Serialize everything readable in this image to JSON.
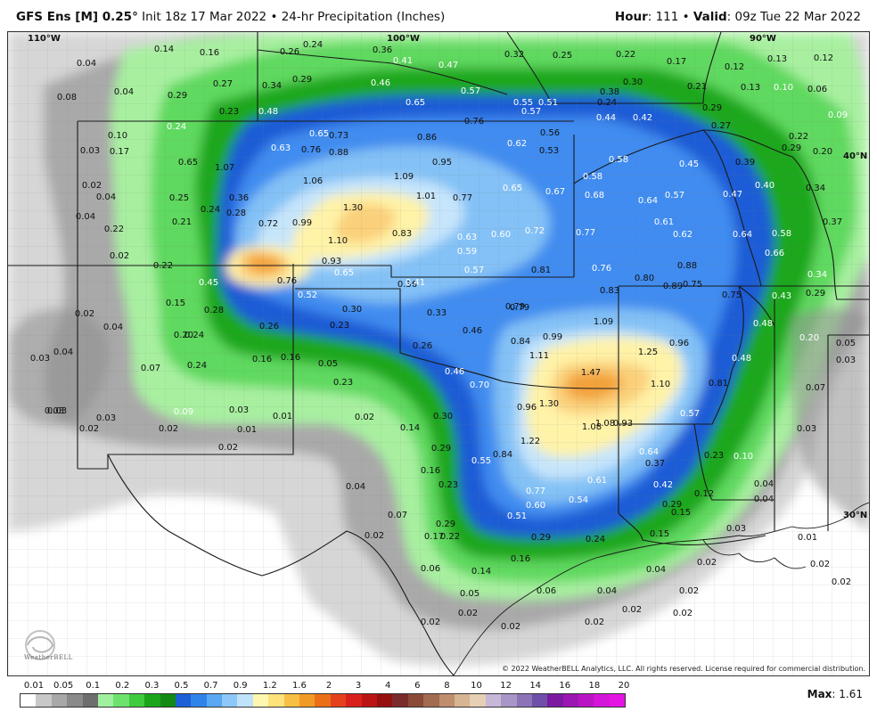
{
  "header": {
    "model": "GFS Ens [M] 0.25",
    "degree": "°",
    "init": "Init 18z 17 Mar 2022",
    "bullet": "•",
    "product": "24-hr Precipitation (Inches)",
    "hour_label": "Hour",
    "hour_value": ": 111",
    "valid_label": "Valid",
    "valid_value": ": 09z Tue 22 Mar 2022"
  },
  "map": {
    "graticule": {
      "lon110": "110°W",
      "lon100": "100°W",
      "lon90": "90°W",
      "lat40": "40°N",
      "lat30": "30°N"
    },
    "copyright": "© 2022 WeatherBELL Analytics, LLC. All rights reserved. License required for commercial distribution.",
    "logo_text": "WeatherBELL",
    "labels": [
      {
        "t": "0.14",
        "c": "d"
      },
      {
        "t": "0.16",
        "c": "d"
      },
      {
        "t": "0.24",
        "c": "d"
      },
      {
        "t": "0.26",
        "c": "d"
      },
      {
        "t": "0.36",
        "c": "d"
      },
      {
        "t": "0.41",
        "c": "w"
      },
      {
        "t": "0.47",
        "c": "w"
      },
      {
        "t": "0.32",
        "c": "d"
      },
      {
        "t": "0.25",
        "c": "d"
      },
      {
        "t": "0.22",
        "c": "d"
      },
      {
        "t": "0.17",
        "c": "d"
      },
      {
        "t": "0.13",
        "c": "d"
      },
      {
        "t": "0.12",
        "c": "d"
      },
      {
        "t": "0.04",
        "c": "d"
      },
      {
        "t": "0.27",
        "c": "d"
      },
      {
        "t": "0.29",
        "c": "d"
      },
      {
        "t": "0.34",
        "c": "d"
      },
      {
        "t": "0.46",
        "c": "w"
      },
      {
        "t": "0.57",
        "c": "w"
      },
      {
        "t": "0.38",
        "c": "d"
      },
      {
        "t": "0.30",
        "c": "d"
      },
      {
        "t": "0.24",
        "c": "d"
      },
      {
        "t": "0.21",
        "c": "d"
      },
      {
        "t": "0.12",
        "c": "d"
      },
      {
        "t": "0.13",
        "c": "d"
      },
      {
        "t": "0.10",
        "c": "w"
      },
      {
        "t": "0.06",
        "c": "d"
      },
      {
        "t": "0.08",
        "c": "d"
      },
      {
        "t": "0.04",
        "c": "d"
      },
      {
        "t": "0.29",
        "c": "d"
      },
      {
        "t": "0.23",
        "c": "d"
      },
      {
        "t": "0.48",
        "c": "w"
      },
      {
        "t": "0.65",
        "c": "w"
      },
      {
        "t": "0.55",
        "c": "w"
      },
      {
        "t": "0.57",
        "c": "w"
      },
      {
        "t": "0.51",
        "c": "w"
      },
      {
        "t": "0.44",
        "c": "w"
      },
      {
        "t": "0.42",
        "c": "w"
      },
      {
        "t": "0.29",
        "c": "d"
      },
      {
        "t": "0.09",
        "c": "w"
      },
      {
        "t": "0.24",
        "c": "w"
      },
      {
        "t": "0.65",
        "c": "w"
      },
      {
        "t": "0.73",
        "c": "d"
      },
      {
        "t": "0.86",
        "c": "d"
      },
      {
        "t": "0.76",
        "c": "d"
      },
      {
        "t": "0.62",
        "c": "w"
      },
      {
        "t": "0.56",
        "c": "d"
      },
      {
        "t": "0.27",
        "c": "d"
      },
      {
        "t": "0.22",
        "c": "d"
      },
      {
        "t": "0.10",
        "c": "d"
      },
      {
        "t": "0.03",
        "c": "d"
      },
      {
        "t": "0.17",
        "c": "d"
      },
      {
        "t": "0.63",
        "c": "w"
      },
      {
        "t": "0.76",
        "c": "d"
      },
      {
        "t": "0.88",
        "c": "d"
      },
      {
        "t": "0.53",
        "c": "d"
      },
      {
        "t": "0.29",
        "c": "d"
      },
      {
        "t": "0.20",
        "c": "d"
      },
      {
        "t": "0.65",
        "c": "d"
      },
      {
        "t": "1.07",
        "c": "d"
      },
      {
        "t": "0.95",
        "c": "d"
      },
      {
        "t": "0.58",
        "c": "w"
      },
      {
        "t": "0.45",
        "c": "w"
      },
      {
        "t": "0.39",
        "c": "d"
      },
      {
        "t": "0.02",
        "c": "d"
      },
      {
        "t": "1.06",
        "c": "d"
      },
      {
        "t": "1.09",
        "c": "d"
      },
      {
        "t": "0.58",
        "c": "w"
      },
      {
        "t": "0.40",
        "c": "w"
      },
      {
        "t": "0.34",
        "c": "d"
      },
      {
        "t": "0.04",
        "c": "d"
      },
      {
        "t": "0.25",
        "c": "d"
      },
      {
        "t": "0.36",
        "c": "d"
      },
      {
        "t": "1.01",
        "c": "d"
      },
      {
        "t": "0.77",
        "c": "d"
      },
      {
        "t": "0.65",
        "c": "w"
      },
      {
        "t": "0.67",
        "c": "w"
      },
      {
        "t": "0.68",
        "c": "w"
      },
      {
        "t": "0.64",
        "c": "w"
      },
      {
        "t": "0.57",
        "c": "w"
      },
      {
        "t": "0.47",
        "c": "w"
      },
      {
        "t": "0.24",
        "c": "d"
      },
      {
        "t": "0.28",
        "c": "d"
      },
      {
        "t": "1.30",
        "c": "d"
      },
      {
        "t": "0.04",
        "c": "d"
      },
      {
        "t": "0.21",
        "c": "d"
      },
      {
        "t": "0.72",
        "c": "d"
      },
      {
        "t": "0.99",
        "c": "d"
      },
      {
        "t": "0.61",
        "c": "w"
      },
      {
        "t": "0.37",
        "c": "d"
      },
      {
        "t": "0.22",
        "c": "d"
      },
      {
        "t": "0.83",
        "c": "d"
      },
      {
        "t": "0.63",
        "c": "w"
      },
      {
        "t": "0.60",
        "c": "w"
      },
      {
        "t": "0.72",
        "c": "w"
      },
      {
        "t": "0.77",
        "c": "w"
      },
      {
        "t": "0.62",
        "c": "w"
      },
      {
        "t": "0.64",
        "c": "w"
      },
      {
        "t": "0.58",
        "c": "w"
      },
      {
        "t": "1.10",
        "c": "d"
      },
      {
        "t": "0.59",
        "c": "w"
      },
      {
        "t": "0.66",
        "c": "w"
      },
      {
        "t": "0.02",
        "c": "d"
      },
      {
        "t": "0.22",
        "c": "d"
      },
      {
        "t": "0.93",
        "c": "d"
      },
      {
        "t": "0.57",
        "c": "w"
      },
      {
        "t": "0.81",
        "c": "d"
      },
      {
        "t": "0.76",
        "c": "w"
      },
      {
        "t": "0.88",
        "c": "d"
      },
      {
        "t": "0.65",
        "c": "w"
      },
      {
        "t": "0.34",
        "c": "w"
      },
      {
        "t": "0.45",
        "c": "w"
      },
      {
        "t": "0.76",
        "c": "d"
      },
      {
        "t": "0.36",
        "c": "d"
      },
      {
        "t": "0.41",
        "c": "w"
      },
      {
        "t": "0.80",
        "c": "d"
      },
      {
        "t": "0.89",
        "c": "d"
      },
      {
        "t": "0.75",
        "c": "d"
      },
      {
        "t": "0.52",
        "c": "w"
      },
      {
        "t": "0.79",
        "c": "d"
      },
      {
        "t": "0.83",
        "c": "d"
      },
      {
        "t": "0.75",
        "c": "d"
      },
      {
        "t": "0.43",
        "c": "w"
      },
      {
        "t": "0.29",
        "c": "d"
      },
      {
        "t": "0.15",
        "c": "d"
      },
      {
        "t": "0.30",
        "c": "d"
      },
      {
        "t": "0.28",
        "c": "d"
      },
      {
        "t": "0.79",
        "c": "d"
      },
      {
        "t": "0.33",
        "c": "d"
      },
      {
        "t": "0.02",
        "c": "d"
      },
      {
        "t": "0.23",
        "c": "d"
      },
      {
        "t": "0.26",
        "c": "d"
      },
      {
        "t": "0.04",
        "c": "d"
      },
      {
        "t": "0.20",
        "c": "d"
      },
      {
        "t": "0.24",
        "c": "d"
      },
      {
        "t": "0.46",
        "c": "d"
      },
      {
        "t": "1.09",
        "c": "d"
      },
      {
        "t": "0.48",
        "c": "w"
      },
      {
        "t": "0.26",
        "c": "d"
      },
      {
        "t": "0.84",
        "c": "d"
      },
      {
        "t": "0.99",
        "c": "d"
      },
      {
        "t": "0.96",
        "c": "d"
      },
      {
        "t": "0.20",
        "c": "w"
      },
      {
        "t": "0.05",
        "c": "d"
      },
      {
        "t": "0.04",
        "c": "d"
      },
      {
        "t": "0.03",
        "c": "d"
      },
      {
        "t": "0.16",
        "c": "d"
      },
      {
        "t": "0.16",
        "c": "d"
      },
      {
        "t": "1.11",
        "c": "d"
      },
      {
        "t": "1.25",
        "c": "d"
      },
      {
        "t": "0.48",
        "c": "w"
      },
      {
        "t": "0.03",
        "c": "d"
      },
      {
        "t": "0.07",
        "c": "d"
      },
      {
        "t": "0.24",
        "c": "d"
      },
      {
        "t": "0.05",
        "c": "d"
      },
      {
        "t": "0.23",
        "c": "d"
      },
      {
        "t": "1.47",
        "c": "d"
      },
      {
        "t": "0.03",
        "c": "d"
      },
      {
        "t": "0.46",
        "c": "w"
      },
      {
        "t": "0.70",
        "c": "w"
      },
      {
        "t": "1.10",
        "c": "d"
      },
      {
        "t": "0.81",
        "c": "d"
      },
      {
        "t": "0.07",
        "c": "d"
      },
      {
        "t": "0.03",
        "c": "d"
      },
      {
        "t": "0.03",
        "c": "d"
      },
      {
        "t": "0.09",
        "c": "w"
      },
      {
        "t": "0.03",
        "c": "d"
      },
      {
        "t": "0.01",
        "c": "d"
      },
      {
        "t": "0.02",
        "c": "d"
      },
      {
        "t": "0.30",
        "c": "d"
      },
      {
        "t": "0.96",
        "c": "d"
      },
      {
        "t": "1.30",
        "c": "d"
      },
      {
        "t": "0.57",
        "c": "w"
      },
      {
        "t": "0.03",
        "c": "d"
      },
      {
        "t": "0.02",
        "c": "d"
      },
      {
        "t": "0.02",
        "c": "d"
      },
      {
        "t": "0.01",
        "c": "d"
      },
      {
        "t": "0.14",
        "c": "d"
      },
      {
        "t": "1.08",
        "c": "d"
      },
      {
        "t": "1.08",
        "c": "d"
      },
      {
        "t": "0.93",
        "c": "d"
      },
      {
        "t": "0.02",
        "c": "d"
      },
      {
        "t": "0.29",
        "c": "d"
      },
      {
        "t": "1.22",
        "c": "d"
      },
      {
        "t": "0.64",
        "c": "w"
      },
      {
        "t": "0.55",
        "c": "w"
      },
      {
        "t": "0.84",
        "c": "d"
      },
      {
        "t": "0.37",
        "c": "d"
      },
      {
        "t": "0.23",
        "c": "d"
      },
      {
        "t": "0.10",
        "c": "w"
      },
      {
        "t": "0.16",
        "c": "d"
      },
      {
        "t": "0.23",
        "c": "d"
      },
      {
        "t": "0.61",
        "c": "w"
      },
      {
        "t": "0.42",
        "c": "w"
      },
      {
        "t": "0.04",
        "c": "d"
      },
      {
        "t": "0.04",
        "c": "d"
      },
      {
        "t": "0.77",
        "c": "w"
      },
      {
        "t": "0.12",
        "c": "d"
      },
      {
        "t": "0.60",
        "c": "w"
      },
      {
        "t": "0.54",
        "c": "w"
      },
      {
        "t": "0.29",
        "c": "d"
      },
      {
        "t": "0.04",
        "c": "d"
      },
      {
        "t": "0.07",
        "c": "d"
      },
      {
        "t": "0.29",
        "c": "d"
      },
      {
        "t": "0.51",
        "c": "w"
      },
      {
        "t": "0.15",
        "c": "d"
      },
      {
        "t": "0.02",
        "c": "d"
      },
      {
        "t": "0.17",
        "c": "d"
      },
      {
        "t": "0.22",
        "c": "d"
      },
      {
        "t": "0.29",
        "c": "d"
      },
      {
        "t": "0.24",
        "c": "d"
      },
      {
        "t": "0.15",
        "c": "d"
      },
      {
        "t": "0.03",
        "c": "d"
      },
      {
        "t": "0.01",
        "c": "d"
      },
      {
        "t": "0.16",
        "c": "d"
      },
      {
        "t": "0.02",
        "c": "d"
      },
      {
        "t": "0.02",
        "c": "d"
      },
      {
        "t": "0.06",
        "c": "d"
      },
      {
        "t": "0.14",
        "c": "d"
      },
      {
        "t": "0.04",
        "c": "d"
      },
      {
        "t": "0.02",
        "c": "d"
      },
      {
        "t": "0.05",
        "c": "d"
      },
      {
        "t": "0.06",
        "c": "d"
      },
      {
        "t": "0.04",
        "c": "d"
      },
      {
        "t": "0.02",
        "c": "d"
      },
      {
        "t": "0.02",
        "c": "d"
      },
      {
        "t": "0.02",
        "c": "d"
      },
      {
        "t": "0.02",
        "c": "d"
      },
      {
        "t": "0.02",
        "c": "d"
      },
      {
        "t": "0.02",
        "c": "d"
      },
      {
        "t": "0.02",
        "c": "d"
      }
    ]
  },
  "legend": {
    "ticks": [
      "0.01",
      "0.05",
      "0.1",
      "0.2",
      "0.3",
      "0.5",
      "0.7",
      "0.9",
      "1.2",
      "1.6",
      "2",
      "3",
      "4",
      "6",
      "8",
      "10",
      "12",
      "14",
      "16",
      "18",
      "20"
    ],
    "colors": [
      "#ffffff",
      "#c8c8c8",
      "#a8a8a8",
      "#8a8a8a",
      "#6e6e6e",
      "#a0f0a0",
      "#6de36d",
      "#3ecb3e",
      "#1aa51a",
      "#138a13",
      "#1d5fd6",
      "#2f84ea",
      "#59a8f3",
      "#8ec8fa",
      "#bfe3fb",
      "#fff7b0",
      "#fde37a",
      "#f7bf45",
      "#f19a25",
      "#eb6f17",
      "#e4411d",
      "#d9201d",
      "#bb1414",
      "#961010",
      "#7a2b2b",
      "#8a4a37",
      "#a36b4f",
      "#bf8f6d",
      "#d7b493",
      "#e6cfb4",
      "#c8b8d8",
      "#a896c7",
      "#8c73b8",
      "#6f4fa8",
      "#7b1aa0",
      "#9b16b2",
      "#b914c4",
      "#d414d8",
      "#e414e4"
    ],
    "max_label": "Max",
    "max_value": ": 1.61"
  },
  "colors": {
    "gray1": "#d2d2d2",
    "gray2": "#a8a8a8",
    "gray3": "#8a8a8a",
    "green1": "#a8f0a0",
    "green2": "#66dd66",
    "green3": "#2fb52f",
    "green4": "#1a9a1a",
    "blue1": "#1e5cd6",
    "blue2": "#3d8af0",
    "blue3": "#7fbdf5",
    "blue4": "#c2e3fb",
    "yellow": "#fff3a8",
    "orange1": "#fbd07a",
    "orange2": "#f5a43a",
    "border": "#222222",
    "county": "#8a8a8a"
  }
}
